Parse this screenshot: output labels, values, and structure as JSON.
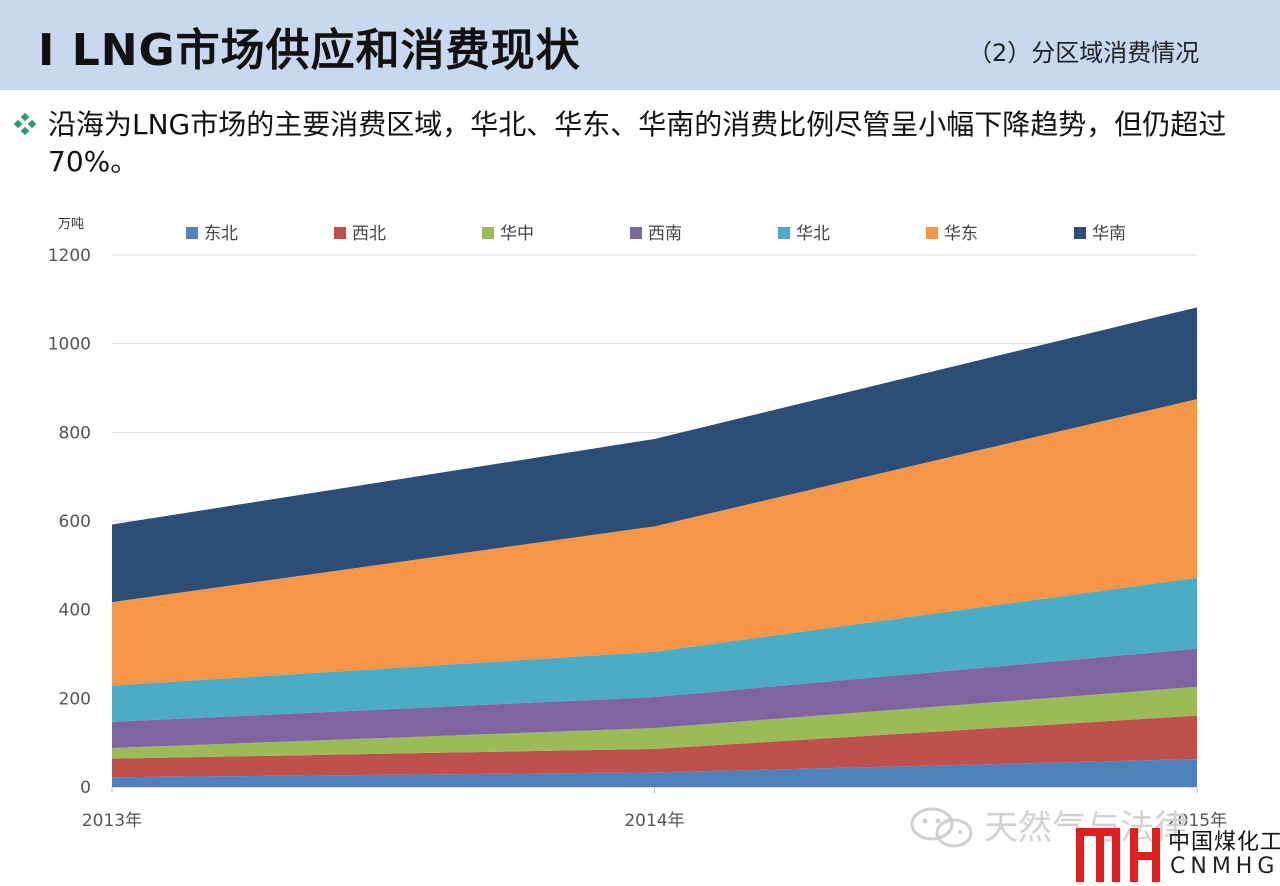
{
  "header": {
    "title": "Ⅰ LNG市场供应和消费现状",
    "subtitle": "（2）分区域消费情况"
  },
  "bullet": {
    "text": "沿海为LNG市场的主要消费区域，华北、华东、华南的消费比例尽管呈小幅下降趋势，但仍超过70%。",
    "icon": "diamond-cluster-icon"
  },
  "chart_data": {
    "type": "area",
    "stacked": true,
    "unit": "万吨",
    "title": "",
    "xlabel": "",
    "ylabel": "",
    "ylim": [
      0,
      1200
    ],
    "yticks": [
      0,
      200,
      400,
      600,
      800,
      1000,
      1200
    ],
    "grid": true,
    "legend_position": "top",
    "x": [
      "2013年",
      "2014年",
      "2015年"
    ],
    "series": [
      {
        "name": "东北",
        "color": "#4f81bd",
        "values": [
          22,
          33,
          63
        ]
      },
      {
        "name": "西北",
        "color": "#c0504d",
        "values": [
          42,
          53,
          98
        ]
      },
      {
        "name": "华中",
        "color": "#9bbb59",
        "values": [
          24,
          47,
          65
        ]
      },
      {
        "name": "西南",
        "color": "#8064a2",
        "values": [
          59,
          70,
          86
        ]
      },
      {
        "name": "华北",
        "color": "#4bacc6",
        "values": [
          82,
          102,
          160
        ]
      },
      {
        "name": "华东",
        "color": "#f79646",
        "values": [
          188,
          283,
          403
        ]
      },
      {
        "name": "华南",
        "color": "#2c4d75",
        "values": [
          175,
          197,
          207
        ]
      }
    ]
  },
  "watermark": {
    "text": "天然气与法律",
    "icon": "wechat-icon"
  },
  "logo": {
    "cn": "中国煤化工",
    "en": "CNMHG",
    "mark": "mh-logo-mark",
    "color": "#e02020"
  }
}
